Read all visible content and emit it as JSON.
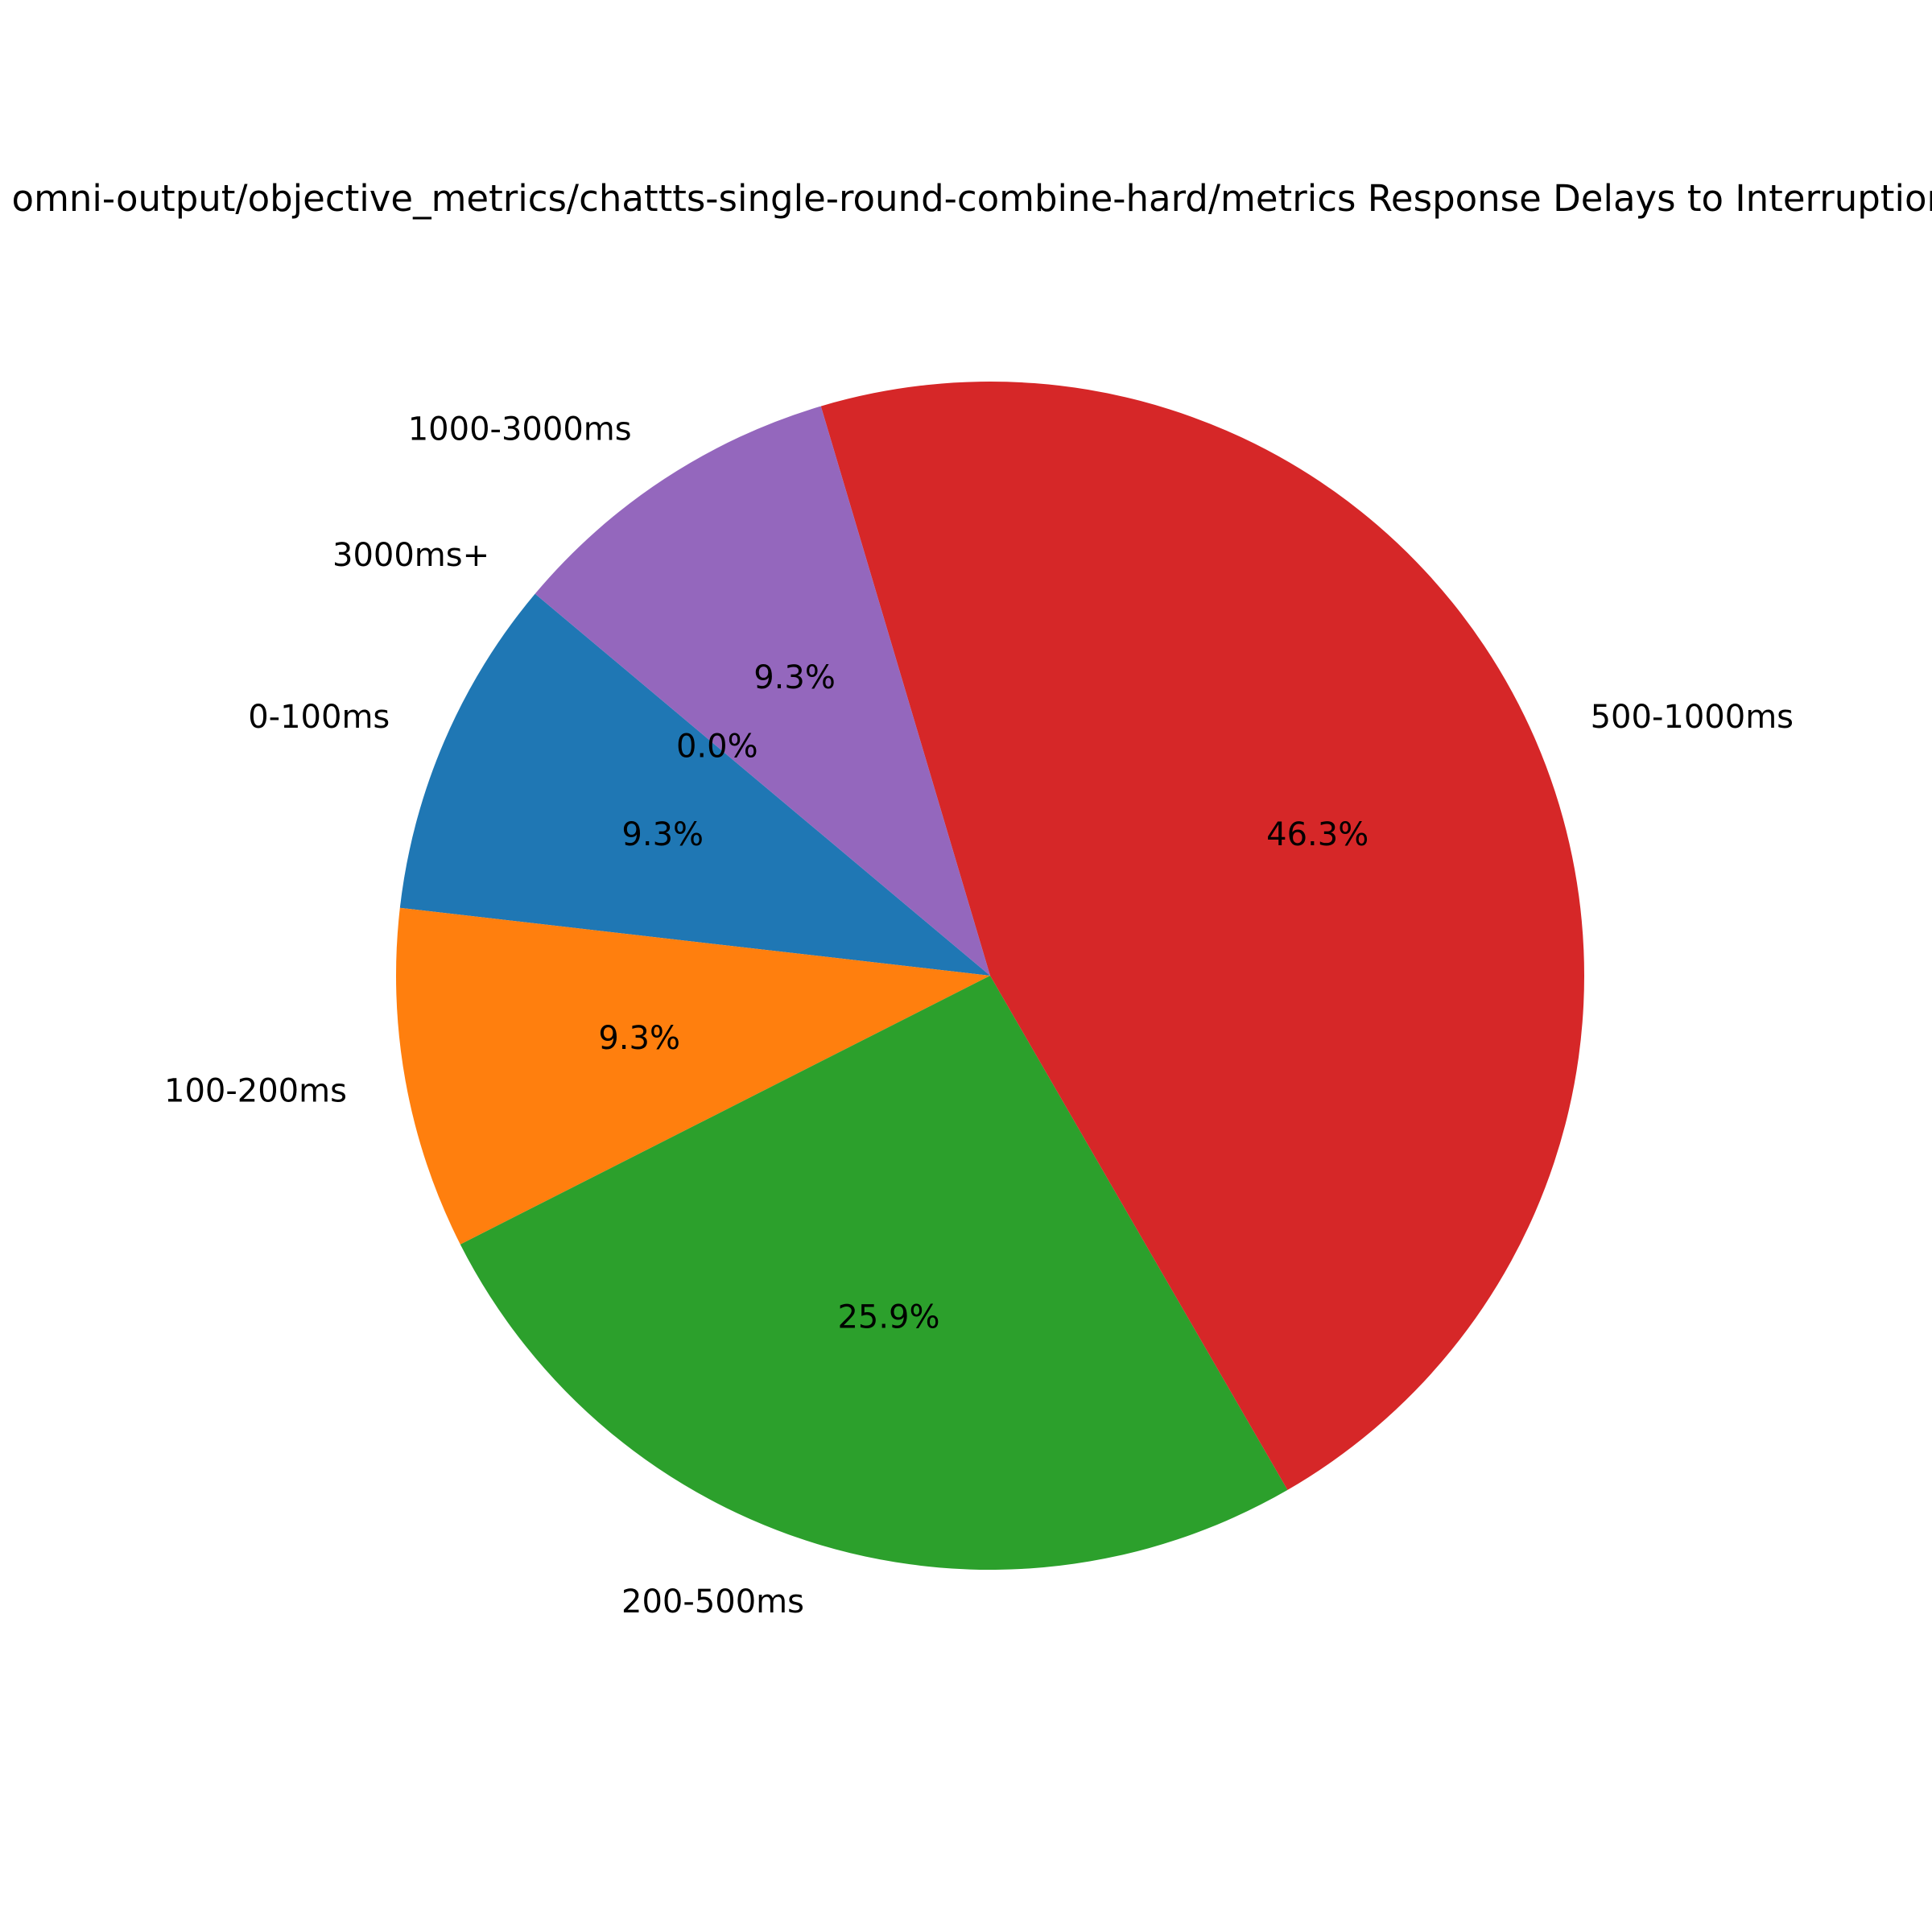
{
  "chart_data": {
    "type": "pie",
    "title": "omni-output/objective_metrics/chattts-single-round-combine-hard/metrics Response Delays to Interruptions",
    "slices": [
      {
        "label": "0-100ms",
        "value": 9.3,
        "pct_label": "9.3%",
        "color": "#1f77b4"
      },
      {
        "label": "100-200ms",
        "value": 9.3,
        "pct_label": "9.3%",
        "color": "#ff7f0e"
      },
      {
        "label": "200-500ms",
        "value": 25.9,
        "pct_label": "25.9%",
        "color": "#2ca02c"
      },
      {
        "label": "500-1000ms",
        "value": 46.3,
        "pct_label": "46.3%",
        "color": "#d62728"
      },
      {
        "label": "1000-3000ms",
        "value": 9.3,
        "pct_label": "9.3%",
        "color": "#9467bd"
      },
      {
        "label": "3000ms+",
        "value": 0.0,
        "pct_label": "0.0%",
        "color": "#8c564b"
      }
    ],
    "start_angle_deg": 140,
    "direction": "counterclockwise",
    "legend": "none"
  }
}
